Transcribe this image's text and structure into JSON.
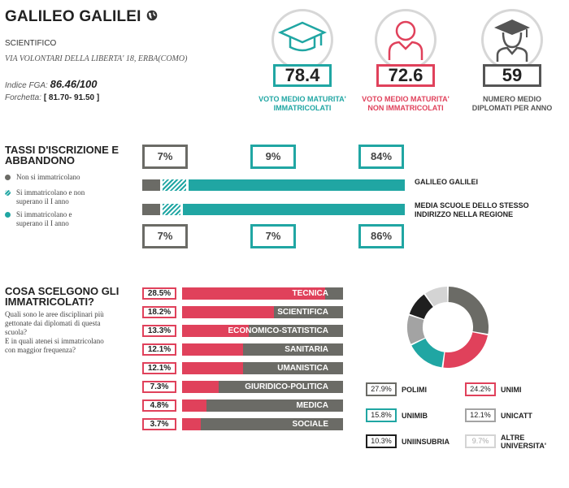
{
  "school": {
    "name": "GALILEO GALILEI",
    "type": "SCIENTIFICO",
    "address": "VIA VOLONTARI DELLA LIBERTA' 18, ERBA(COMO)",
    "fga_label": "Indice FGA:",
    "fga_value": "86.46/100",
    "range_label": "Forchetta:",
    "range_value": "[ 81.70- 91.50 ]"
  },
  "stats": [
    {
      "value": "78.4",
      "label_1": "VOTO MEDIO MATURITA'",
      "label_2": "IMMATRICOLATI",
      "color": "#20a6a3",
      "icon": "graduation-cap-icon"
    },
    {
      "value": "72.6",
      "label_1": "VOTO MEDIO MATURITA'",
      "label_2": "NON IMMATRICOLATI",
      "color": "#e0415b",
      "icon": "person-icon"
    },
    {
      "value": "59",
      "label_1": "NUMERO MEDIO",
      "label_2": "DIPLOMATI PER ANNO",
      "color": "#555555",
      "icon": "graduate-person-icon"
    }
  ],
  "enrollment": {
    "title_1": "TASSI D'ISCRIZIONE E",
    "title_2": "ABBANDONO",
    "legend": [
      {
        "line_1": "Non si immatricolano",
        "line_2": "",
        "color": "#6b6b66"
      },
      {
        "line_1": "Si immatricolano e non",
        "line_2": "superano il I anno",
        "color": "#20a6a3"
      },
      {
        "line_1": "Si immatricolano e",
        "line_2": "superano il I anno",
        "color": "#20a6a3"
      }
    ],
    "top_values": [
      "7%",
      "9%",
      "84%"
    ],
    "bottom_values": [
      "7%",
      "7%",
      "86%"
    ],
    "rows": [
      {
        "name_1": "GALILEO GALILEI",
        "name_2": "",
        "values": [
          7,
          9,
          84
        ]
      },
      {
        "name_1": "MEDIA SCUOLE DELLO STESSO",
        "name_2": "INDIRIZZO NELLA REGIONE",
        "values": [
          7,
          7,
          86
        ]
      }
    ],
    "colors": {
      "not_enrolled": "#6b6b66",
      "dropout": "#20a6a3",
      "pass": "#20a6a3"
    }
  },
  "choices": {
    "title_1": "COSA SCELGONO GLI",
    "title_2": "IMMATRICOLATI?",
    "question_lines": [
      "Quali sono le aree disciplinari più",
      "gettonate dai diplomati di questa",
      "scuola?",
      "E in quali atenei si immatricolano",
      "con maggior frequenza?"
    ],
    "categories": [
      {
        "name": "TECNICA",
        "pct": "28.5%",
        "value": 28.5
      },
      {
        "name": "SCIENTIFICA",
        "pct": "18.2%",
        "value": 18.2
      },
      {
        "name": "ECONOMICO-STATISTICA",
        "pct": "13.3%",
        "value": 13.3
      },
      {
        "name": "SANITARIA",
        "pct": "12.1%",
        "value": 12.1
      },
      {
        "name": "UMANISTICA",
        "pct": "12.1%",
        "value": 12.1
      },
      {
        "name": "GIURIDICO-POLITICA",
        "pct": "7.3%",
        "value": 7.3
      },
      {
        "name": "MEDICA",
        "pct": "4.8%",
        "value": 4.8
      },
      {
        "name": "SOCIALE",
        "pct": "3.7%",
        "value": 3.7
      }
    ]
  },
  "universities": [
    {
      "name_1": "POLIMI",
      "name_2": "",
      "pct": "27.9%",
      "value": 27.9,
      "color": "#6b6b66"
    },
    {
      "name_1": "UNIMI",
      "name_2": "",
      "pct": "24.2%",
      "value": 24.2,
      "color": "#e0415b"
    },
    {
      "name_1": "UNIMIB",
      "name_2": "",
      "pct": "15.8%",
      "value": 15.8,
      "color": "#20a6a3"
    },
    {
      "name_1": "UNICATT",
      "name_2": "",
      "pct": "12.1%",
      "value": 12.1,
      "color": "#a3a3a3"
    },
    {
      "name_1": "UNIINSUBRIA",
      "name_2": "",
      "pct": "10.3%",
      "value": 10.3,
      "color": "#1f1f1f"
    },
    {
      "name_1": "ALTRE",
      "name_2": "UNIVERSITA'",
      "pct": "9.7%",
      "value": 9.7,
      "color": "#d4d4d4"
    }
  ],
  "chart_data": [
    {
      "type": "bar",
      "title": "TASSI D'ISCRIZIONE E ABBANDONO",
      "categories": [
        "GALILEO GALILEI",
        "MEDIA SCUOLE DELLO STESSO INDIRIZZO NELLA REGIONE"
      ],
      "series": [
        {
          "name": "Non si immatricolano",
          "values": [
            7,
            7
          ]
        },
        {
          "name": "Si immatricolano e non superano il I anno",
          "values": [
            9,
            7
          ]
        },
        {
          "name": "Si immatricolano e superano il I anno",
          "values": [
            84,
            86
          ]
        }
      ]
    },
    {
      "type": "bar",
      "title": "COSA SCELGONO GLI IMMATRICOLATI?",
      "categories": [
        "TECNICA",
        "SCIENTIFICA",
        "ECONOMICO-STATISTICA",
        "SANITARIA",
        "UMANISTICA",
        "GIURIDICO-POLITICA",
        "MEDICA",
        "SOCIALE"
      ],
      "values": [
        28.5,
        18.2,
        13.3,
        12.1,
        12.1,
        7.3,
        4.8,
        3.7
      ]
    },
    {
      "type": "pie",
      "categories": [
        "POLIMI",
        "UNIMI",
        "UNIMIB",
        "UNICATT",
        "UNIINSUBRIA",
        "ALTRE UNIVERSITA'"
      ],
      "values": [
        27.9,
        24.2,
        15.8,
        12.1,
        10.3,
        9.7
      ]
    }
  ]
}
